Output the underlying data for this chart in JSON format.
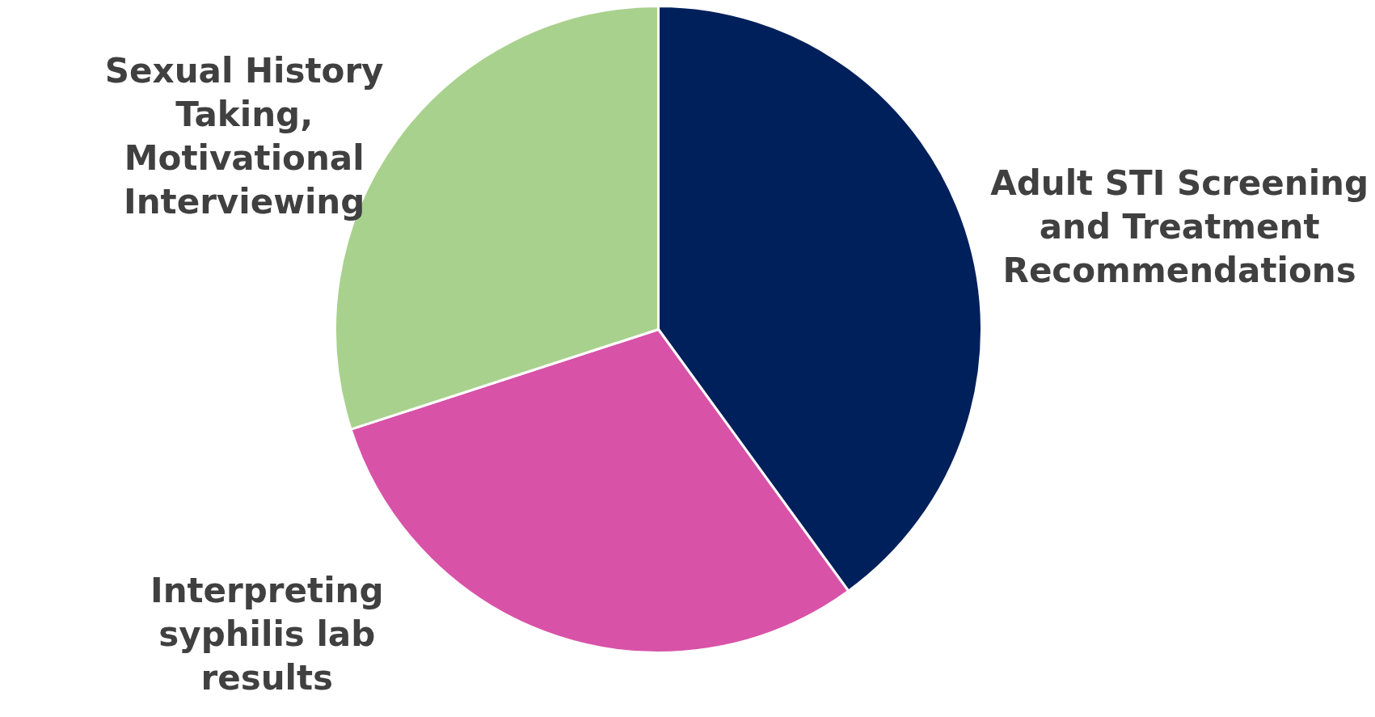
{
  "chart_data": {
    "type": "pie",
    "categories": [
      "Adult STI Screening and Treatment Recommendations",
      "Interpreting syphilis lab results",
      "Sexual History Taking, Motivational Interviewing"
    ],
    "values": [
      40,
      30,
      30
    ],
    "colors": [
      "#00205b",
      "#d852a8",
      "#a9d18e"
    ],
    "legend": false
  }
}
